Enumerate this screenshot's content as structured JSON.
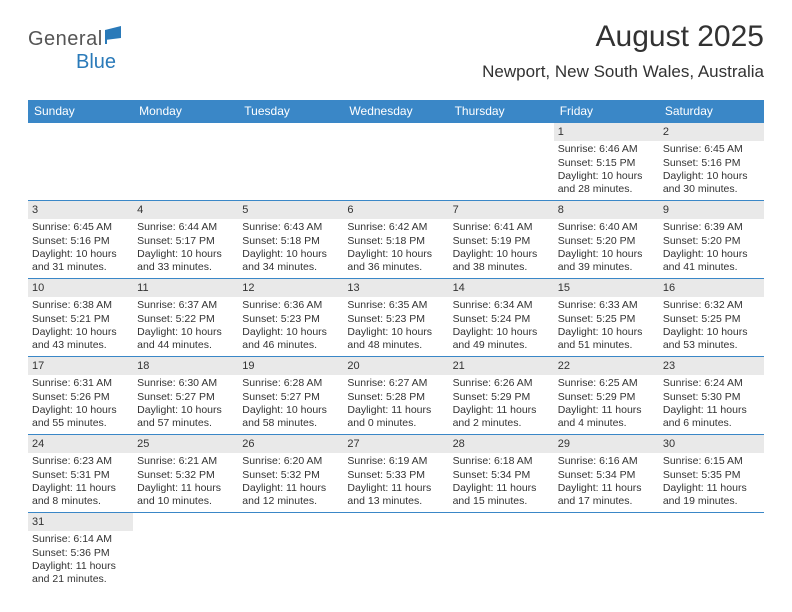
{
  "brand": {
    "general": "General",
    "blue": "Blue"
  },
  "title": "August 2025",
  "subtitle": "Newport, New South Wales, Australia",
  "colors": {
    "header_bar": "#3a87c7",
    "header_text": "#ffffff",
    "daynum_bg": "#e9e9e9",
    "row_border": "#3a87c7",
    "title_color": "#323232",
    "logo_blue": "#2a7ab9",
    "logo_gray": "#555555"
  },
  "typography": {
    "title_fontsize": 30,
    "subtitle_fontsize": 17,
    "dayhead_fontsize": 12,
    "cell_fontsize": 10.5
  },
  "day_names": [
    "Sunday",
    "Monday",
    "Tuesday",
    "Wednesday",
    "Thursday",
    "Friday",
    "Saturday"
  ],
  "weeks": [
    [
      {
        "n": "",
        "sr": "",
        "ss": "",
        "dl": "",
        "empty": true
      },
      {
        "n": "",
        "sr": "",
        "ss": "",
        "dl": "",
        "empty": true
      },
      {
        "n": "",
        "sr": "",
        "ss": "",
        "dl": "",
        "empty": true
      },
      {
        "n": "",
        "sr": "",
        "ss": "",
        "dl": "",
        "empty": true
      },
      {
        "n": "",
        "sr": "",
        "ss": "",
        "dl": "",
        "empty": true
      },
      {
        "n": "1",
        "sr": "Sunrise: 6:46 AM",
        "ss": "Sunset: 5:15 PM",
        "dl": "Daylight: 10 hours and 28 minutes."
      },
      {
        "n": "2",
        "sr": "Sunrise: 6:45 AM",
        "ss": "Sunset: 5:16 PM",
        "dl": "Daylight: 10 hours and 30 minutes."
      }
    ],
    [
      {
        "n": "3",
        "sr": "Sunrise: 6:45 AM",
        "ss": "Sunset: 5:16 PM",
        "dl": "Daylight: 10 hours and 31 minutes."
      },
      {
        "n": "4",
        "sr": "Sunrise: 6:44 AM",
        "ss": "Sunset: 5:17 PM",
        "dl": "Daylight: 10 hours and 33 minutes."
      },
      {
        "n": "5",
        "sr": "Sunrise: 6:43 AM",
        "ss": "Sunset: 5:18 PM",
        "dl": "Daylight: 10 hours and 34 minutes."
      },
      {
        "n": "6",
        "sr": "Sunrise: 6:42 AM",
        "ss": "Sunset: 5:18 PM",
        "dl": "Daylight: 10 hours and 36 minutes."
      },
      {
        "n": "7",
        "sr": "Sunrise: 6:41 AM",
        "ss": "Sunset: 5:19 PM",
        "dl": "Daylight: 10 hours and 38 minutes."
      },
      {
        "n": "8",
        "sr": "Sunrise: 6:40 AM",
        "ss": "Sunset: 5:20 PM",
        "dl": "Daylight: 10 hours and 39 minutes."
      },
      {
        "n": "9",
        "sr": "Sunrise: 6:39 AM",
        "ss": "Sunset: 5:20 PM",
        "dl": "Daylight: 10 hours and 41 minutes."
      }
    ],
    [
      {
        "n": "10",
        "sr": "Sunrise: 6:38 AM",
        "ss": "Sunset: 5:21 PM",
        "dl": "Daylight: 10 hours and 43 minutes."
      },
      {
        "n": "11",
        "sr": "Sunrise: 6:37 AM",
        "ss": "Sunset: 5:22 PM",
        "dl": "Daylight: 10 hours and 44 minutes."
      },
      {
        "n": "12",
        "sr": "Sunrise: 6:36 AM",
        "ss": "Sunset: 5:23 PM",
        "dl": "Daylight: 10 hours and 46 minutes."
      },
      {
        "n": "13",
        "sr": "Sunrise: 6:35 AM",
        "ss": "Sunset: 5:23 PM",
        "dl": "Daylight: 10 hours and 48 minutes."
      },
      {
        "n": "14",
        "sr": "Sunrise: 6:34 AM",
        "ss": "Sunset: 5:24 PM",
        "dl": "Daylight: 10 hours and 49 minutes."
      },
      {
        "n": "15",
        "sr": "Sunrise: 6:33 AM",
        "ss": "Sunset: 5:25 PM",
        "dl": "Daylight: 10 hours and 51 minutes."
      },
      {
        "n": "16",
        "sr": "Sunrise: 6:32 AM",
        "ss": "Sunset: 5:25 PM",
        "dl": "Daylight: 10 hours and 53 minutes."
      }
    ],
    [
      {
        "n": "17",
        "sr": "Sunrise: 6:31 AM",
        "ss": "Sunset: 5:26 PM",
        "dl": "Daylight: 10 hours and 55 minutes."
      },
      {
        "n": "18",
        "sr": "Sunrise: 6:30 AM",
        "ss": "Sunset: 5:27 PM",
        "dl": "Daylight: 10 hours and 57 minutes."
      },
      {
        "n": "19",
        "sr": "Sunrise: 6:28 AM",
        "ss": "Sunset: 5:27 PM",
        "dl": "Daylight: 10 hours and 58 minutes."
      },
      {
        "n": "20",
        "sr": "Sunrise: 6:27 AM",
        "ss": "Sunset: 5:28 PM",
        "dl": "Daylight: 11 hours and 0 minutes."
      },
      {
        "n": "21",
        "sr": "Sunrise: 6:26 AM",
        "ss": "Sunset: 5:29 PM",
        "dl": "Daylight: 11 hours and 2 minutes."
      },
      {
        "n": "22",
        "sr": "Sunrise: 6:25 AM",
        "ss": "Sunset: 5:29 PM",
        "dl": "Daylight: 11 hours and 4 minutes."
      },
      {
        "n": "23",
        "sr": "Sunrise: 6:24 AM",
        "ss": "Sunset: 5:30 PM",
        "dl": "Daylight: 11 hours and 6 minutes."
      }
    ],
    [
      {
        "n": "24",
        "sr": "Sunrise: 6:23 AM",
        "ss": "Sunset: 5:31 PM",
        "dl": "Daylight: 11 hours and 8 minutes."
      },
      {
        "n": "25",
        "sr": "Sunrise: 6:21 AM",
        "ss": "Sunset: 5:32 PM",
        "dl": "Daylight: 11 hours and 10 minutes."
      },
      {
        "n": "26",
        "sr": "Sunrise: 6:20 AM",
        "ss": "Sunset: 5:32 PM",
        "dl": "Daylight: 11 hours and 12 minutes."
      },
      {
        "n": "27",
        "sr": "Sunrise: 6:19 AM",
        "ss": "Sunset: 5:33 PM",
        "dl": "Daylight: 11 hours and 13 minutes."
      },
      {
        "n": "28",
        "sr": "Sunrise: 6:18 AM",
        "ss": "Sunset: 5:34 PM",
        "dl": "Daylight: 11 hours and 15 minutes."
      },
      {
        "n": "29",
        "sr": "Sunrise: 6:16 AM",
        "ss": "Sunset: 5:34 PM",
        "dl": "Daylight: 11 hours and 17 minutes."
      },
      {
        "n": "30",
        "sr": "Sunrise: 6:15 AM",
        "ss": "Sunset: 5:35 PM",
        "dl": "Daylight: 11 hours and 19 minutes."
      }
    ],
    [
      {
        "n": "31",
        "sr": "Sunrise: 6:14 AM",
        "ss": "Sunset: 5:36 PM",
        "dl": "Daylight: 11 hours and 21 minutes."
      },
      {
        "n": "",
        "sr": "",
        "ss": "",
        "dl": "",
        "empty": true
      },
      {
        "n": "",
        "sr": "",
        "ss": "",
        "dl": "",
        "empty": true
      },
      {
        "n": "",
        "sr": "",
        "ss": "",
        "dl": "",
        "empty": true
      },
      {
        "n": "",
        "sr": "",
        "ss": "",
        "dl": "",
        "empty": true
      },
      {
        "n": "",
        "sr": "",
        "ss": "",
        "dl": "",
        "empty": true
      },
      {
        "n": "",
        "sr": "",
        "ss": "",
        "dl": "",
        "empty": true
      }
    ]
  ]
}
